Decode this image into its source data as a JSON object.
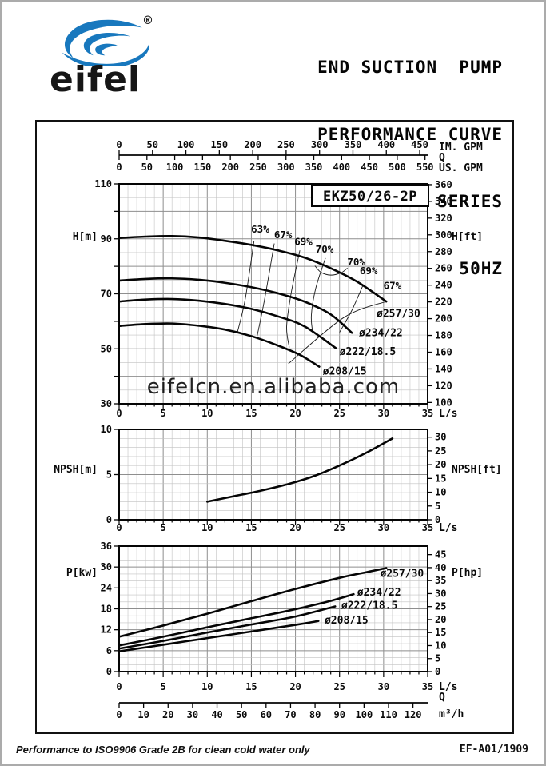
{
  "header": {
    "brand": "eifel",
    "registered": "®",
    "title_lines": [
      "END SUCTION  PUMP",
      "PERFORMANCE CURVE",
      "EKZ  SERIES",
      "50HZ"
    ]
  },
  "footer": {
    "note": "Performance to ISO9906 Grade 2B for clean cold water only",
    "doc_code": "EF-A01/1909"
  },
  "watermark": "eifelcn.en.alibaba.com",
  "colors": {
    "brand_blue": "#1878BE",
    "ink": "#0a0a0a",
    "grid_minor": "#c2c2c2",
    "grid_major": "#8e8e8e",
    "watermark_gray": "#c6c6c6"
  },
  "chart_data": [
    {
      "type": "line",
      "id": "head",
      "title": "EKZ50/26-2P",
      "x_axis": {
        "unit": "L/s",
        "min": 0,
        "max": 35,
        "tick_labels": [
          0,
          5,
          10,
          15,
          20,
          25,
          30,
          35
        ]
      },
      "top_axes": {
        "im": {
          "caption": "IM. GPM",
          "tick_labels": [
            0,
            50,
            100,
            150,
            200,
            250,
            300,
            350,
            400,
            450
          ],
          "ls_per_unit": 0.0757682
        },
        "q_caption": "Q",
        "us": {
          "caption": "US. GPM",
          "tick_labels": [
            0,
            50,
            100,
            150,
            200,
            250,
            300,
            350,
            400,
            450,
            500,
            550
          ],
          "ls_per_unit": 0.0630902
        }
      },
      "y_left": {
        "caption": "H[m]",
        "min": 30,
        "max": 110,
        "tick_labels": [
          30,
          50,
          70,
          90,
          110
        ]
      },
      "y_right": {
        "caption": "H[ft]",
        "tick_labels": [
          100,
          120,
          140,
          160,
          180,
          200,
          220,
          240,
          260,
          280,
          300,
          320,
          340,
          360
        ],
        "ft_per_m": 3.28084
      },
      "series": [
        {
          "name": "ø257/30",
          "label_at": [
            29.2,
            61.5
          ],
          "points": [
            [
              0,
              90.3
            ],
            [
              3,
              90.8
            ],
            [
              6,
              91.0
            ],
            [
              9,
              90.5
            ],
            [
              12,
              89.3
            ],
            [
              15,
              87.8
            ],
            [
              18,
              85.8
            ],
            [
              21,
              83.2
            ],
            [
              24,
              79.3
            ],
            [
              27,
              74.4
            ],
            [
              30.3,
              67.2
            ]
          ]
        },
        {
          "name": "ø234/22",
          "label_at": [
            27.2,
            54.6
          ],
          "points": [
            [
              0,
              74.8
            ],
            [
              3,
              75.4
            ],
            [
              6,
              75.6
            ],
            [
              9,
              75.1
            ],
            [
              12,
              74.0
            ],
            [
              15,
              72.4
            ],
            [
              18,
              70.2
            ],
            [
              21,
              67.2
            ],
            [
              24,
              62.5
            ],
            [
              26.4,
              55.8
            ]
          ]
        },
        {
          "name": "ø222/18.5",
          "label_at": [
            25.0,
            47.8
          ],
          "points": [
            [
              0,
              67.2
            ],
            [
              3,
              67.9
            ],
            [
              6,
              68.1
            ],
            [
              9,
              67.5
            ],
            [
              12,
              66.3
            ],
            [
              15,
              64.5
            ],
            [
              18,
              61.8
            ],
            [
              21,
              58.2
            ],
            [
              24.6,
              50.2
            ]
          ]
        },
        {
          "name": "ø208/15",
          "label_at": [
            23.1,
            40.6
          ],
          "points": [
            [
              0,
              58.3
            ],
            [
              3,
              59.0
            ],
            [
              6,
              59.2
            ],
            [
              9,
              58.4
            ],
            [
              12,
              57.0
            ],
            [
              15,
              54.6
            ],
            [
              18,
              51.2
            ],
            [
              20.5,
              47.8
            ],
            [
              22.7,
              43.5
            ]
          ]
        }
      ],
      "efficiency_lines": [
        {
          "label": "63%",
          "label_at": [
            16.0,
            92.2
          ],
          "points": [
            [
              15.3,
              89.2
            ],
            [
              14.3,
              68.0
            ],
            [
              13.4,
              55.8
            ]
          ]
        },
        {
          "label": "67%",
          "label_at": [
            18.6,
            90.2
          ],
          "points": [
            [
              17.6,
              88.3
            ],
            [
              16.5,
              68.0
            ],
            [
              15.6,
              53.8
            ]
          ]
        },
        {
          "label": "69%",
          "label_at": [
            20.9,
            87.8
          ],
          "points": [
            [
              20.5,
              85.8
            ],
            [
              19.5,
              70.0
            ],
            [
              19.0,
              58.0
            ],
            [
              19.3,
              50.5
            ]
          ]
        },
        {
          "label": "70%",
          "label_at": [
            23.3,
            85.0
          ],
          "points": [
            [
              23.4,
              83.0
            ],
            [
              22.3,
              72.0
            ],
            [
              21.8,
              62.0
            ],
            [
              22.0,
              55.0
            ]
          ]
        },
        {
          "label": "70%",
          "label_at": [
            26.9,
            80.4
          ],
          "points": [
            [
              22.2,
              80.2
            ],
            [
              22.9,
              77.8
            ],
            [
              24.0,
              76.8
            ],
            [
              25.2,
              77.7
            ],
            [
              25.9,
              79.4
            ]
          ]
        },
        {
          "label": "69%",
          "label_at": [
            28.3,
            77.2
          ],
          "points": [
            [
              27.7,
              73.4
            ],
            [
              26.4,
              64.0
            ],
            [
              25.0,
              56.0
            ]
          ]
        },
        {
          "label": "67%",
          "label_at": [
            31.0,
            71.8
          ],
          "points": [
            [
              30.3,
              67.2
            ],
            [
              25.5,
              61.4
            ],
            [
              19.2,
              44.6
            ]
          ]
        }
      ]
    },
    {
      "type": "line",
      "id": "npsh",
      "x_axis": {
        "unit": "L/s",
        "min": 0,
        "max": 35,
        "tick_labels": [
          0,
          5,
          10,
          15,
          20,
          25,
          30,
          35
        ]
      },
      "y_left": {
        "caption": "NPSH[m]",
        "min": 0,
        "max": 10,
        "tick_labels": [
          0,
          5,
          10
        ]
      },
      "y_right": {
        "caption": "NPSH[ft]",
        "tick_labels": [
          0,
          5,
          10,
          15,
          20,
          25,
          30
        ],
        "ft_per_m": 3.28084
      },
      "series": [
        {
          "name": "NPSH",
          "points": [
            [
              10,
              2.0
            ],
            [
              13,
              2.6
            ],
            [
              16,
              3.2
            ],
            [
              19,
              3.9
            ],
            [
              22,
              4.8
            ],
            [
              25,
              6.0
            ],
            [
              28,
              7.4
            ],
            [
              31,
              9.0
            ]
          ]
        }
      ]
    },
    {
      "type": "line",
      "id": "power",
      "x_axis": {
        "unit": "L/s",
        "min": 0,
        "max": 35,
        "tick_labels": [
          0,
          5,
          10,
          15,
          20,
          25,
          30,
          35
        ]
      },
      "bottom_axis": {
        "q_caption": "Q",
        "unit_caption": "m³/h",
        "tick_labels": [
          0,
          10,
          20,
          30,
          40,
          50,
          60,
          70,
          80,
          90,
          100,
          110,
          120
        ],
        "ls_per_unit": 0.2777778
      },
      "y_left": {
        "caption": "P[kw]",
        "min": 0,
        "max": 36,
        "tick_labels": [
          0,
          6,
          12,
          18,
          24,
          30,
          36
        ]
      },
      "y_right": {
        "caption": "P[hp]",
        "tick_labels": [
          0,
          5,
          10,
          15,
          20,
          25,
          30,
          35,
          40,
          45
        ],
        "kw_per_hp": 0.7457
      },
      "series": [
        {
          "name": "ø257/30",
          "label_at": [
            29.6,
            27.2
          ],
          "points": [
            [
              0,
              10.0
            ],
            [
              5,
              13.2
            ],
            [
              10,
              16.6
            ],
            [
              15,
              20.2
            ],
            [
              20,
              23.7
            ],
            [
              25,
              26.9
            ],
            [
              28,
              28.5
            ],
            [
              30.3,
              29.7
            ]
          ]
        },
        {
          "name": "ø234/22",
          "label_at": [
            27.0,
            21.8
          ],
          "points": [
            [
              0,
              7.5
            ],
            [
              5,
              10.0
            ],
            [
              10,
              12.7
            ],
            [
              15,
              15.3
            ],
            [
              20,
              17.9
            ],
            [
              24,
              20.3
            ],
            [
              26.6,
              22.2
            ]
          ]
        },
        {
          "name": "ø222/18.5",
          "label_at": [
            25.2,
            18.0
          ],
          "points": [
            [
              0,
              6.6
            ],
            [
              5,
              8.8
            ],
            [
              10,
              11.2
            ],
            [
              15,
              13.5
            ],
            [
              20,
              15.8
            ],
            [
              24.5,
              18.7
            ]
          ]
        },
        {
          "name": "ø208/15",
          "label_at": [
            23.3,
            13.8
          ],
          "points": [
            [
              0,
              5.8
            ],
            [
              5,
              7.7
            ],
            [
              10,
              9.6
            ],
            [
              15,
              11.5
            ],
            [
              20,
              13.4
            ],
            [
              22.6,
              14.5
            ]
          ]
        }
      ]
    }
  ]
}
